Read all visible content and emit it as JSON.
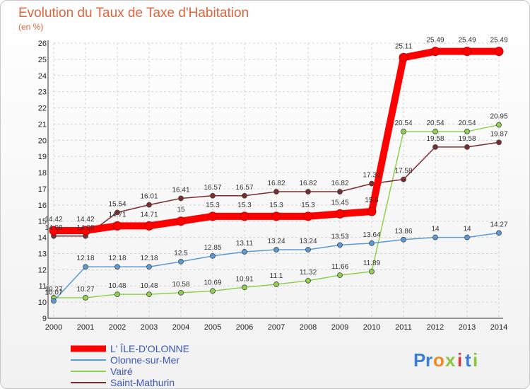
{
  "chart_data": {
    "type": "line",
    "title": "Evolution du Taux de Taxe d'Habitation",
    "subtitle": "(en %)",
    "x": [
      "2000",
      "2001",
      "2002",
      "2003",
      "2004",
      "2005",
      "2006",
      "2007",
      "2008",
      "2009",
      "2010",
      "2011",
      "2012",
      "2013",
      "2014"
    ],
    "ylim": [
      9,
      26
    ],
    "yticks": [
      9,
      10,
      11,
      12,
      13,
      14,
      15,
      16,
      17,
      18,
      19,
      20,
      21,
      22,
      23,
      24,
      25,
      26
    ],
    "grid": true,
    "series": [
      {
        "name": "L' ÎLE-D'OLONNE",
        "color": "#ff0000",
        "values": [
          14.42,
          14.42,
          14.71,
          14.71,
          15,
          15.3,
          15.3,
          15.3,
          15.3,
          15.45,
          15.6,
          25.11,
          25.49,
          25.49,
          25.49
        ],
        "labels": [
          "14.42",
          "14.42",
          "14.71",
          "14.71",
          "15",
          "15.3",
          "15.3",
          "15.3",
          "15.3",
          "15.45",
          "15.6",
          "25.11",
          "25.49",
          "25.49",
          "25.49"
        ]
      },
      {
        "name": "Olonne-sur-Mer",
        "color": "#5b9bd5",
        "values": [
          10.07,
          12.18,
          12.18,
          12.18,
          12.5,
          12.85,
          13.11,
          13.24,
          13.24,
          13.53,
          13.64,
          13.86,
          14,
          14,
          14.27
        ],
        "labels": [
          "10.07",
          "12.18",
          "12.18",
          "12.18",
          "12.5",
          "12.85",
          "13.11",
          "13.24",
          "13.24",
          "13.53",
          "13.64",
          "13.86",
          "14",
          "14",
          "14.27"
        ]
      },
      {
        "name": "Vairé",
        "color": "#8fd14f",
        "values": [
          10.27,
          10.27,
          10.48,
          10.48,
          10.58,
          10.69,
          10.91,
          11.1,
          11.32,
          11.66,
          11.89,
          20.54,
          20.54,
          20.54,
          20.95
        ],
        "labels": [
          "10.27",
          "10.27",
          "10.48",
          "10.48",
          "10.58",
          "10.69",
          "10.91",
          "11.1",
          "11.32",
          "11.66",
          "11.89",
          "20.54",
          "20.54",
          "20.54",
          "20.95"
        ]
      },
      {
        "name": "Saint-Mathurin",
        "color": "#7b2c2c",
        "values": [
          14.08,
          14.08,
          15.54,
          16.01,
          16.41,
          16.57,
          16.57,
          16.82,
          16.82,
          16.82,
          17.32,
          17.58,
          19.58,
          19.58,
          19.87
        ],
        "labels": [
          "14.08",
          "14.08",
          "15.54",
          "16.01",
          "16.41",
          "16.57",
          "16.57",
          "16.82",
          "16.82",
          "16.82",
          "17.32",
          "17.58",
          "19.58",
          "19.58",
          "19.87"
        ]
      }
    ],
    "legend_position": "bottom-left"
  },
  "logo": {
    "letters": [
      "P",
      "r",
      "o",
      "x",
      "i",
      "t",
      "i"
    ],
    "colors": [
      "#3a7fd5",
      "#3a7fd5",
      "#f08a24",
      "#8bc53f",
      "#d43a3a",
      "#3a7fd5",
      "#8bc53f"
    ]
  }
}
